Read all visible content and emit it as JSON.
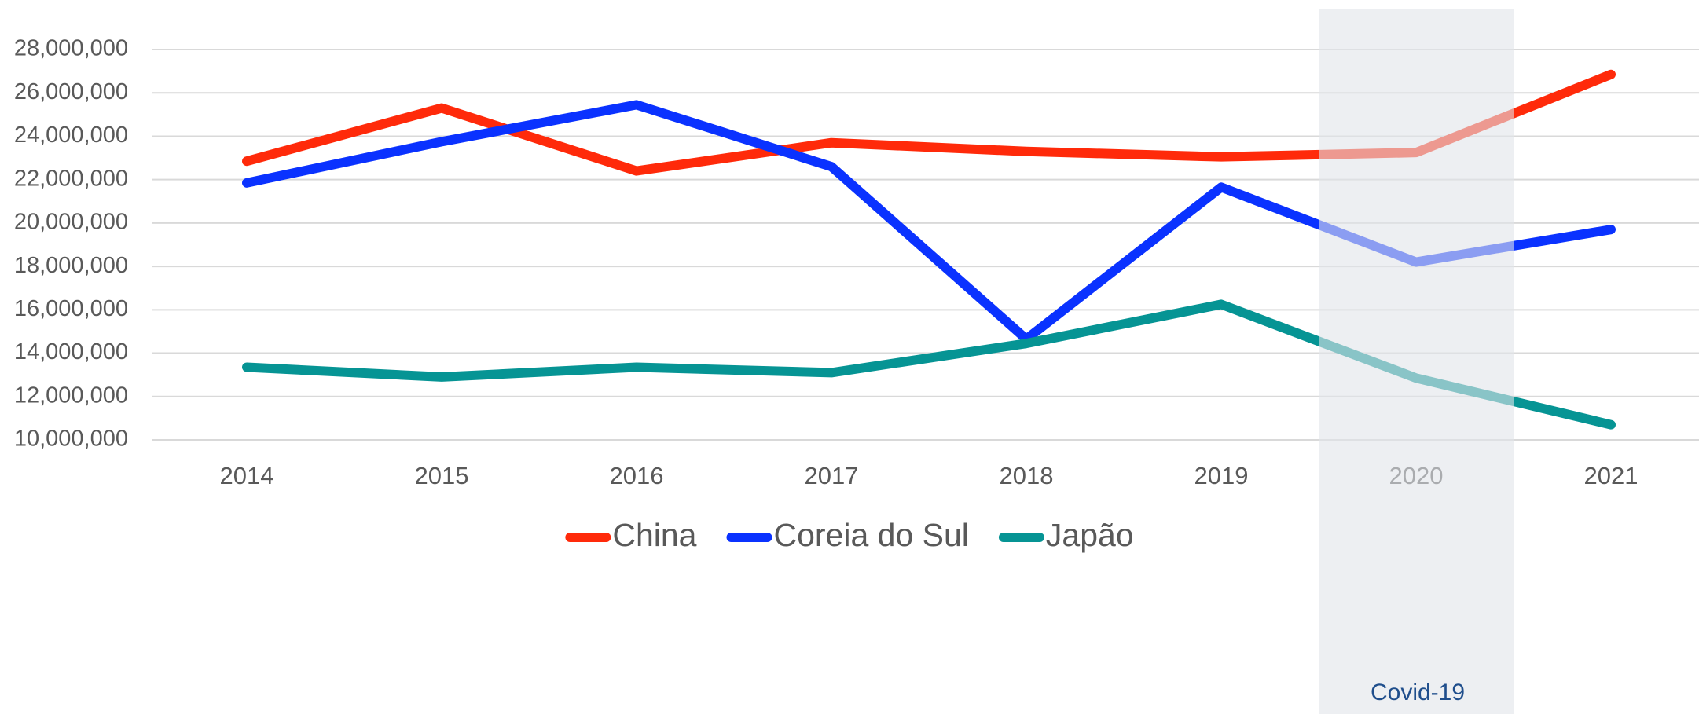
{
  "chart_data": {
    "type": "line",
    "categories": [
      "2014",
      "2015",
      "2016",
      "2017",
      "2018",
      "2019",
      "2020",
      "2021"
    ],
    "series": [
      {
        "name": "China",
        "color": "#ff2a0a",
        "values": [
          22850000,
          25300000,
          22400000,
          23700000,
          23300000,
          23050000,
          23250000,
          26850000
        ]
      },
      {
        "name": "Coreia do Sul",
        "color": "#0a32ff",
        "values": [
          21850000,
          23750000,
          25450000,
          22600000,
          14650000,
          21650000,
          18200000,
          19700000
        ]
      },
      {
        "name": "Japão",
        "color": "#069494",
        "values": [
          13350000,
          12900000,
          13350000,
          13100000,
          14450000,
          16250000,
          12850000,
          10700000
        ]
      }
    ],
    "ylim": [
      10000000,
      28000000
    ],
    "yticks": [
      {
        "value": 10000000,
        "label": "10,000,000"
      },
      {
        "value": 12000000,
        "label": "12,000,000"
      },
      {
        "value": 14000000,
        "label": "14,000,000"
      },
      {
        "value": 16000000,
        "label": "16,000,000"
      },
      {
        "value": 18000000,
        "label": "18,000,000"
      },
      {
        "value": 20000000,
        "label": "20,000,000"
      },
      {
        "value": 22000000,
        "label": "22,000,000"
      },
      {
        "value": 24000000,
        "label": "24,000,000"
      },
      {
        "value": 26000000,
        "label": "26,000,000"
      },
      {
        "value": 28000000,
        "label": "28,000,000"
      }
    ],
    "grid": true,
    "legend": "bottom",
    "highlight": {
      "label": "Covid-19",
      "x": "2020",
      "color": "#e1e4ea"
    }
  }
}
